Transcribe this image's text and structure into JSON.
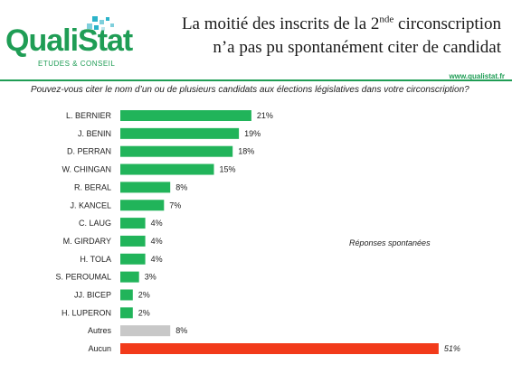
{
  "header": {
    "logo_text": "QualiStat",
    "logo_sub": "ETUDES & CONSEIL",
    "title_line1_a": "La moitié des inscrits de la 2",
    "title_line1_sup": "nde",
    "title_line1_b": " circonscription",
    "title_line2": "n’a pas pu spontanément citer de candidat",
    "url": "www.qualistat.fr"
  },
  "question": "Pouvez-vous citer  le nom d’un ou de plusieurs candidats aux élections législatives dans votre circonscription?",
  "note": "Réponses spontanées",
  "colors": {
    "green": "#21b45a",
    "gray": "#c8c8c8",
    "red": "#f23a1a",
    "brand": "#1f9d55"
  },
  "chart_data": {
    "type": "bar",
    "orientation": "horizontal",
    "categories": [
      "L. BERNIER",
      "J. BENIN",
      "D. PERRAN",
      "W. CHINGAN",
      "R. BERAL",
      "J. KANCEL",
      "C. LAUG",
      "M. GIRDARY",
      "H. TOLA",
      "S. PEROUMAL",
      "JJ. BICEP",
      "H. LUPERON",
      "Autres",
      "Aucun"
    ],
    "values": [
      21,
      19,
      18,
      15,
      8,
      7,
      4,
      4,
      4,
      3,
      2,
      2,
      8,
      51
    ],
    "value_labels": [
      "21%",
      "19%",
      "18%",
      "15%",
      "8%",
      "7%",
      "4%",
      "4%",
      "4%",
      "3%",
      "2%",
      "2%",
      "8%",
      "51%"
    ],
    "bar_colors": [
      "green",
      "green",
      "green",
      "green",
      "green",
      "green",
      "green",
      "green",
      "green",
      "green",
      "green",
      "green",
      "gray",
      "red"
    ],
    "xlim": [
      0,
      52
    ],
    "grid": false
  }
}
